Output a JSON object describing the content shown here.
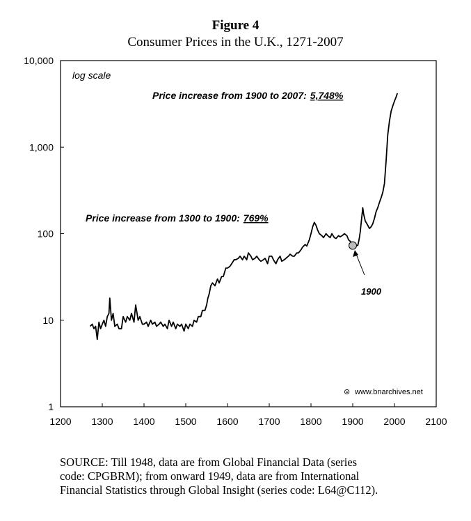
{
  "figure": {
    "label": "Figure 4",
    "subtitle": "Consumer Prices in the U.K., 1271-2007"
  },
  "source_lines": [
    "SOURCE: Till 1948, data are from Global Financial Data (series",
    "code: CPGBRM); from onward 1949, data are from International",
    "Financial Statistics through Global Insight (series code: L64@C112)."
  ],
  "chart_data": {
    "type": "line",
    "title": "Consumer Prices in the U.K., 1271-2007",
    "xlabel": "",
    "ylabel": "",
    "y_scale": "log",
    "xlim": [
      1200,
      2100
    ],
    "ylim": [
      1,
      10000
    ],
    "x_ticks": [
      "1200",
      "1300",
      "1400",
      "1500",
      "1600",
      "1700",
      "1800",
      "1900",
      "2000",
      "2100"
    ],
    "y_ticks": [
      "1",
      "10",
      "100",
      "1,000",
      "10,000"
    ],
    "x_tick_values": [
      1200,
      1300,
      1400,
      1500,
      1600,
      1700,
      1800,
      1900,
      2000,
      2100
    ],
    "y_tick_values": [
      1,
      10,
      100,
      1000,
      10000
    ],
    "scale_note": "log scale",
    "watermark": "www.bnarchives.net",
    "annotations": {
      "upper_text": "Price increase from 1900 to 2007:",
      "upper_value": "5,748%",
      "lower_text": "Price increase from 1300 to 1900:",
      "lower_value": "769%",
      "marker_label": "1900",
      "marker_x": 1900,
      "marker_y": 73
    },
    "series": [
      {
        "name": "Consumer prices",
        "x": [
          1271,
          1276,
          1280,
          1284,
          1288,
          1292,
          1296,
          1300,
          1304,
          1308,
          1312,
          1316,
          1318,
          1322,
          1326,
          1330,
          1336,
          1340,
          1346,
          1350,
          1356,
          1360,
          1366,
          1370,
          1376,
          1380,
          1386,
          1390,
          1396,
          1400,
          1406,
          1410,
          1416,
          1420,
          1426,
          1430,
          1436,
          1440,
          1446,
          1450,
          1456,
          1460,
          1466,
          1470,
          1476,
          1480,
          1486,
          1490,
          1496,
          1500,
          1506,
          1510,
          1516,
          1520,
          1526,
          1530,
          1536,
          1540,
          1546,
          1550,
          1553,
          1556,
          1560,
          1564,
          1570,
          1576,
          1580,
          1586,
          1590,
          1596,
          1600,
          1606,
          1610,
          1616,
          1620,
          1626,
          1630,
          1636,
          1640,
          1646,
          1650,
          1656,
          1660,
          1666,
          1670,
          1676,
          1680,
          1686,
          1690,
          1696,
          1700,
          1706,
          1710,
          1716,
          1720,
          1726,
          1730,
          1736,
          1740,
          1746,
          1750,
          1756,
          1760,
          1766,
          1770,
          1776,
          1780,
          1786,
          1790,
          1796,
          1800,
          1804,
          1808,
          1812,
          1816,
          1820,
          1826,
          1830,
          1836,
          1840,
          1846,
          1850,
          1856,
          1860,
          1866,
          1870,
          1876,
          1880,
          1886,
          1890,
          1896,
          1900,
          1904,
          1908,
          1912,
          1914,
          1916,
          1918,
          1920,
          1922,
          1924,
          1926,
          1930,
          1934,
          1938,
          1940,
          1944,
          1948,
          1952,
          1956,
          1960,
          1964,
          1968,
          1972,
          1976,
          1980,
          1984,
          1988,
          1992,
          1996,
          2000,
          2004,
          2007
        ],
        "values": [
          8.5,
          9,
          8,
          8.5,
          6,
          9.5,
          8,
          9,
          10,
          8.5,
          11,
          12,
          18,
          10,
          12,
          8.5,
          9,
          8,
          8,
          11,
          9.5,
          11,
          10,
          12,
          9.5,
          15,
          10,
          11,
          9,
          9,
          9.5,
          8.5,
          10,
          9,
          9.5,
          8.5,
          9,
          9.5,
          8.5,
          9,
          8,
          10,
          8.5,
          9.5,
          8,
          9,
          8.5,
          9,
          7.5,
          9,
          8,
          9,
          8.5,
          10,
          9.5,
          11,
          11,
          13,
          13,
          15,
          18,
          20,
          25,
          27,
          25,
          30,
          27,
          32,
          32,
          40,
          40,
          42,
          45,
          50,
          50,
          52,
          55,
          50,
          55,
          50,
          60,
          55,
          50,
          52,
          55,
          50,
          48,
          50,
          52,
          45,
          55,
          55,
          50,
          45,
          50,
          55,
          48,
          50,
          52,
          55,
          58,
          55,
          55,
          60,
          60,
          65,
          70,
          75,
          72,
          85,
          100,
          120,
          135,
          125,
          110,
          100,
          95,
          90,
          100,
          95,
          90,
          100,
          90,
          88,
          95,
          92,
          96,
          100,
          95,
          85,
          80,
          78,
          72,
          73,
          73,
          80,
          90,
          105,
          130,
          160,
          200,
          170,
          140,
          130,
          120,
          115,
          120,
          130,
          150,
          180,
          200,
          230,
          260,
          300,
          380,
          700,
          1400,
          2000,
          2600,
          3000,
          3400,
          3800,
          4200
        ]
      }
    ]
  }
}
